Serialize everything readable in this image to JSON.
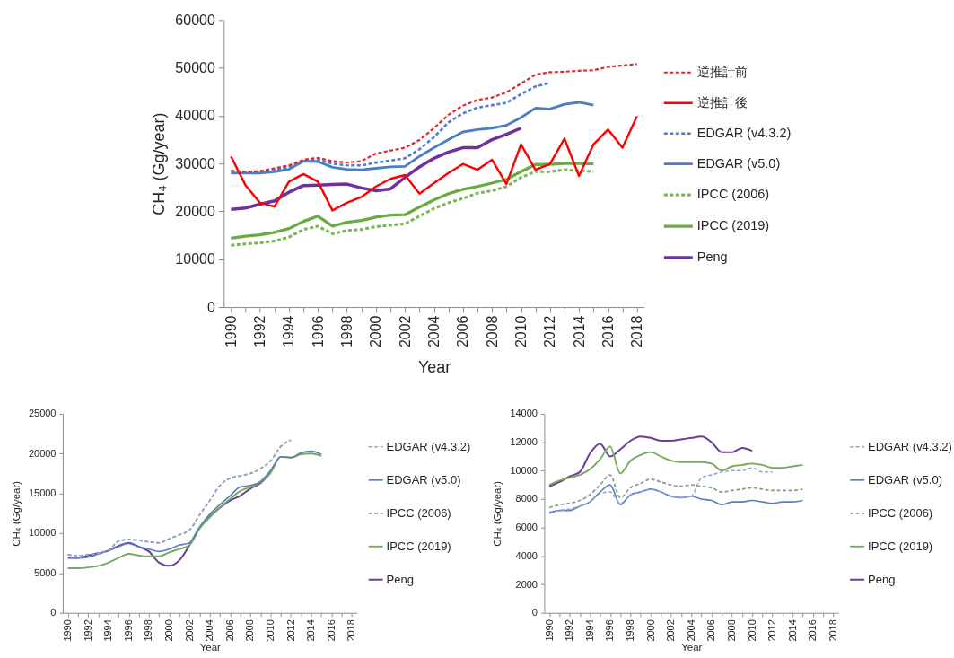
{
  "chart_data": [
    {
      "type": "line",
      "xlabel": "Year",
      "ylabel": "CH₄ (Gg/year)",
      "legend": "right",
      "categories": [
        "1990",
        null,
        "1992",
        null,
        "1994",
        null,
        "1996",
        null,
        "1998",
        null,
        "2000",
        null,
        "2002",
        null,
        "2004",
        null,
        "2006",
        null,
        "2008",
        null,
        "2010",
        null,
        "2012",
        null,
        "2014",
        null,
        "2016",
        null,
        "2018"
      ],
      "ylim": [
        0,
        60000
      ],
      "yticks": [
        0,
        10000,
        20000,
        30000,
        40000,
        50000,
        60000
      ],
      "series": [
        {
          "name": "逆推計前",
          "color": "#e3262b",
          "line_style": "dashed",
          "values": [
            28500,
            28300,
            28400,
            29000,
            29600,
            30800,
            31200,
            30500,
            30200,
            30500,
            32100,
            32700,
            33300,
            34900,
            37400,
            40200,
            42100,
            43300,
            43800,
            44900,
            46700,
            48600,
            49100,
            49200,
            49400,
            49500,
            50200,
            50500,
            50800
          ]
        },
        {
          "name": "逆推計後",
          "color": "#ff0000",
          "line_style": "solid",
          "values": [
            31500,
            25500,
            21800,
            21000,
            26200,
            27800,
            26200,
            20200,
            21800,
            23000,
            25200,
            26800,
            27600,
            23700,
            25900,
            28000,
            29900,
            28700,
            30800,
            25700,
            34000,
            28700,
            29900,
            35200,
            27400,
            34000,
            37100,
            33300,
            39900
          ]
        },
        {
          "name": "EDGAR (v4.3.2)",
          "color": "#4f7fcf",
          "line_style": "dashed",
          "values": [
            28300,
            28200,
            28300,
            28700,
            29300,
            30500,
            30800,
            30000,
            29600,
            29600,
            30200,
            30600,
            31100,
            33000,
            35500,
            38600,
            40500,
            41700,
            42200,
            42700,
            44500,
            46100,
            46900,
            null,
            null,
            null,
            null,
            null,
            null
          ]
        },
        {
          "name": "EDGAR (v5.0)",
          "color": "#4a7ecb",
          "line_style": "solid",
          "values": [
            28000,
            28000,
            28000,
            28300,
            28800,
            30500,
            30400,
            29200,
            28800,
            28700,
            29000,
            29300,
            29400,
            31500,
            33300,
            35000,
            36600,
            37100,
            37400,
            38000,
            39600,
            41600,
            41400,
            42400,
            42800,
            42200,
            null,
            null,
            null
          ]
        },
        {
          "name": "IPCC (2006)",
          "color": "#7cb65a",
          "line_style": "dashed",
          "values": [
            12900,
            13200,
            13400,
            13800,
            14600,
            16200,
            16900,
            15300,
            16000,
            16200,
            16800,
            17100,
            17400,
            19000,
            20600,
            21800,
            22700,
            23800,
            24300,
            25200,
            27100,
            28300,
            28300,
            28700,
            28500,
            28300,
            null,
            null,
            null
          ]
        },
        {
          "name": "IPCC (2019)",
          "color": "#6aaa46",
          "line_style": "solid",
          "values": [
            14400,
            14800,
            15100,
            15600,
            16400,
            17900,
            19000,
            16900,
            17700,
            18100,
            18800,
            19200,
            19300,
            20900,
            22400,
            23700,
            24600,
            25200,
            25900,
            26700,
            28300,
            29800,
            29800,
            30000,
            30000,
            29900,
            null,
            null,
            null
          ]
        },
        {
          "name": "Peng",
          "color": "#7030a0",
          "line_style": "solid",
          "values": [
            20400,
            20700,
            21500,
            22200,
            24000,
            25400,
            25500,
            25600,
            25700,
            24900,
            24300,
            24700,
            27100,
            29300,
            31100,
            32400,
            33300,
            33300,
            35000,
            36100,
            37400,
            null,
            null,
            null,
            null,
            null,
            null,
            null,
            null
          ]
        }
      ]
    },
    {
      "type": "line",
      "xlabel": "Year",
      "ylabel": "CH₄ (Gg/year)",
      "legend": "right",
      "categories": [
        "1990",
        null,
        "1992",
        null,
        "1994",
        null,
        "1996",
        null,
        "1998",
        null,
        "2000",
        null,
        "2002",
        null,
        "2004",
        null,
        "2006",
        null,
        "2008",
        null,
        "2010",
        null,
        "2012",
        null,
        "2014",
        null,
        "2016",
        null,
        "2018"
      ],
      "ylim": [
        0,
        25000
      ],
      "yticks": [
        0,
        5000,
        10000,
        15000,
        20000,
        25000
      ],
      "series": [
        {
          "name": "EDGAR (v4.3.2)",
          "color": "#8da6d6",
          "line_style": "dashed",
          "values": [
            7300,
            7200,
            7300,
            7500,
            7800,
            9000,
            9200,
            9100,
            8900,
            8800,
            9300,
            9800,
            10400,
            12300,
            14100,
            16000,
            16900,
            17200,
            17500,
            18100,
            19100,
            20900,
            21700,
            null,
            null,
            null,
            null,
            null,
            null
          ]
        },
        {
          "name": "EDGAR (v5.0)",
          "color": "#5a7ebd",
          "line_style": "solid",
          "values": [
            7000,
            6900,
            7000,
            7400,
            7800,
            8300,
            8700,
            8300,
            8000,
            7700,
            8000,
            8500,
            8800,
            10800,
            12400,
            13600,
            14700,
            15800,
            16000,
            16500,
            17900,
            19600,
            19500,
            20100,
            20300,
            19900,
            null,
            null,
            null
          ]
        },
        {
          "name": "IPCC (2006)",
          "color": "#8f9a8f",
          "line_style": "dashed",
          "values": [
            7300,
            7200,
            7300,
            7500,
            7800,
            9000,
            9200,
            9100,
            8900,
            8800,
            9300,
            9800,
            10400,
            12300,
            14100,
            16000,
            16900,
            17200,
            17500,
            18100,
            19100,
            20900,
            21700,
            null,
            null,
            null,
            null,
            null,
            null
          ]
        },
        {
          "name": "IPCC (2019)",
          "color": "#74aa5a",
          "line_style": "solid",
          "values": [
            5600,
            5600,
            5700,
            5900,
            6300,
            6900,
            7400,
            7200,
            7100,
            7100,
            7600,
            8000,
            8500,
            10600,
            12000,
            13200,
            14300,
            15300,
            15800,
            16400,
            17600,
            19600,
            19500,
            19900,
            20000,
            19700,
            null,
            null,
            null
          ]
        },
        {
          "name": "Peng",
          "color": "#6b3d99",
          "line_style": "solid",
          "values": [
            6900,
            6900,
            7200,
            7500,
            7800,
            8400,
            8800,
            8300,
            7700,
            6300,
            5900,
            6600,
            8500,
            10700,
            12100,
            13200,
            14100,
            14700,
            15600,
            16300,
            17600,
            null,
            null,
            null,
            null,
            null,
            null,
            null,
            null
          ]
        }
      ]
    },
    {
      "type": "line",
      "xlabel": "Year",
      "ylabel": "CH₄ (Gg/year)",
      "legend": "right",
      "categories": [
        "1990",
        null,
        "1992",
        null,
        "1994",
        null,
        "1996",
        null,
        "1998",
        null,
        "2000",
        null,
        "2002",
        null,
        "2004",
        null,
        "2006",
        null,
        "2008",
        null,
        "2010",
        null,
        "2012",
        null,
        "2014",
        null,
        "2016",
        null,
        "2018"
      ],
      "ylim": [
        0,
        14000
      ],
      "yticks": [
        0,
        2000,
        4000,
        6000,
        8000,
        10000,
        12000,
        14000
      ],
      "series": [
        {
          "name": "EDGAR (v4.3.2)",
          "color": "#8da6d6",
          "line_style": "dashed",
          "values": [
            7100,
            7200,
            7300,
            7500,
            7800,
            8400,
            8500,
            7700,
            8300,
            8500,
            8700,
            8500,
            8200,
            8100,
            8200,
            9500,
            9700,
            9900,
            10000,
            10000,
            10200,
            9900,
            9900,
            null,
            null,
            null,
            null,
            null,
            null
          ]
        },
        {
          "name": "EDGAR (v5.0)",
          "color": "#5a7ebd",
          "line_style": "solid",
          "values": [
            7000,
            7200,
            7200,
            7500,
            7800,
            8500,
            9000,
            7600,
            8300,
            8500,
            8700,
            8500,
            8200,
            8100,
            8200,
            8000,
            7900,
            7600,
            7800,
            7800,
            7900,
            7800,
            7700,
            7800,
            7800,
            7900,
            null,
            null,
            null
          ]
        },
        {
          "name": "IPCC (2006)",
          "color": "#8f9a8f",
          "line_style": "dashed",
          "values": [
            7400,
            7600,
            7700,
            7900,
            8300,
            9000,
            9700,
            8100,
            8800,
            9100,
            9400,
            9200,
            9000,
            8900,
            9000,
            8900,
            8800,
            8500,
            8600,
            8700,
            8800,
            8700,
            8600,
            8600,
            8600,
            8700,
            null,
            null,
            null
          ]
        },
        {
          "name": "IPCC (2019)",
          "color": "#74aa5a",
          "line_style": "solid",
          "values": [
            9000,
            9300,
            9500,
            9700,
            10100,
            10800,
            11700,
            9800,
            10700,
            11100,
            11300,
            11000,
            10700,
            10600,
            10600,
            10600,
            10500,
            10000,
            10300,
            10400,
            10500,
            10400,
            10200,
            10200,
            10300,
            10400,
            null,
            null,
            null
          ]
        },
        {
          "name": "Peng",
          "color": "#6b3d99",
          "line_style": "solid",
          "values": [
            8900,
            9200,
            9600,
            9900,
            11200,
            11900,
            11000,
            11500,
            12100,
            12400,
            12300,
            12100,
            12100,
            12200,
            12300,
            12400,
            12000,
            11300,
            11300,
            11600,
            11400,
            null,
            null,
            null,
            null,
            null,
            null,
            null,
            null
          ]
        }
      ]
    }
  ]
}
